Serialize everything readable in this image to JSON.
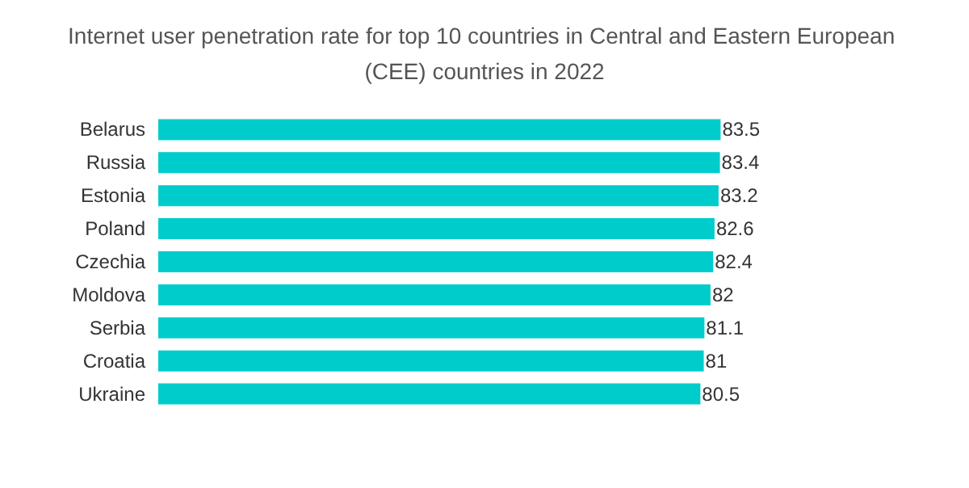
{
  "chart_data": {
    "type": "bar",
    "orientation": "horizontal",
    "title": "Internet user penetration rate for top 10 countries in Central and Eastern European (CEE) countries in 2022",
    "categories": [
      "Belarus",
      "Russia",
      "Estonia",
      "Poland",
      "Czechia",
      "Moldova",
      "Serbia",
      "Croatia",
      "Ukraine"
    ],
    "values": [
      83.5,
      83.4,
      83.2,
      82.6,
      82.4,
      82,
      81.1,
      81,
      80.5
    ],
    "color": "#00cccc",
    "data_labels": true
  }
}
